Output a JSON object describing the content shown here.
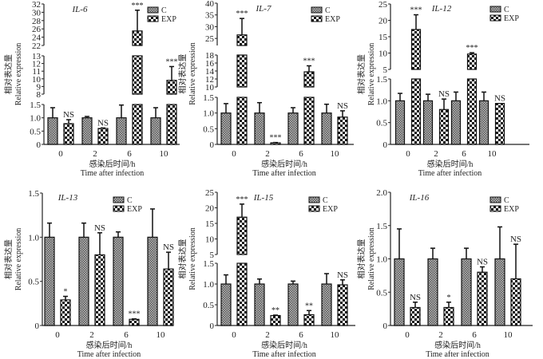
{
  "chart_data": [
    {
      "type": "bar",
      "title": "IL-6",
      "ylabel_cn": "相对表达量",
      "ylabel": "Relative expression",
      "xlabel_cn": "感染后时间/h",
      "xlabel": "Time after infection",
      "categories": [
        "0",
        "2",
        "6",
        "10"
      ],
      "broken_axis": true,
      "segments": [
        {
          "range": [
            0,
            1.5
          ],
          "ticks": [
            "0",
            "0.5",
            "1.0",
            "1.5"
          ]
        },
        {
          "range": [
            8,
            13
          ],
          "ticks": [
            "8",
            "9",
            "10",
            "11",
            "12",
            "13"
          ]
        },
        {
          "range": [
            22,
            32
          ],
          "ticks": [
            "22",
            "24",
            "26",
            "28",
            "30",
            "32"
          ]
        }
      ],
      "series": [
        {
          "name": "C",
          "values": [
            1,
            1,
            1,
            1
          ],
          "errors": [
            0.38,
            0.05,
            0.48,
            0.38
          ]
        },
        {
          "name": "EXP",
          "values": [
            0.78,
            0.6,
            25.5,
            9.8
          ],
          "errors": [
            0.15,
            0.02,
            5,
            1.8
          ],
          "annotations": [
            "NS",
            "NS",
            "***",
            "***"
          ]
        }
      ]
    },
    {
      "type": "bar",
      "title": "IL-7",
      "ylabel_cn": "相对表达量",
      "ylabel": "Relative expression",
      "xlabel_cn": "感染后时间/h",
      "xlabel": "Time after infection",
      "categories": [
        "0",
        "2",
        "6",
        "10"
      ],
      "broken_axis": true,
      "segments": [
        {
          "range": [
            0,
            1.5
          ],
          "ticks": [
            "0",
            "0.5",
            "1.0",
            "1.5"
          ]
        },
        {
          "range": [
            10,
            18
          ],
          "ticks": [
            "10",
            "12",
            "14",
            "16",
            "18"
          ]
        },
        {
          "range": [
            22,
            40
          ],
          "ticks": [
            "25",
            "30",
            "35",
            "40"
          ]
        }
      ],
      "series": [
        {
          "name": "C",
          "values": [
            1,
            1,
            1,
            1
          ],
          "errors": [
            0.3,
            0.33,
            0.17,
            0.28
          ]
        },
        {
          "name": "EXP",
          "values": [
            26.5,
            0.05,
            13.8,
            0.87
          ],
          "errors": [
            7,
            0.01,
            1.5,
            0.2
          ],
          "annotations": [
            "***",
            "***",
            "***",
            "NS"
          ]
        }
      ]
    },
    {
      "type": "bar",
      "title": "IL-12",
      "ylabel_cn": "相对表达量",
      "ylabel": "Relative expression",
      "xlabel_cn": "感染后时间/h",
      "xlabel": "Time after infection",
      "categories": [
        "0",
        "2",
        "6",
        "10"
      ],
      "broken_axis": true,
      "segments": [
        {
          "range": [
            0,
            1.5
          ],
          "ticks": [
            "0",
            "0.5",
            "1.0",
            "1.5"
          ]
        },
        {
          "range": [
            5,
            25
          ],
          "ticks": [
            "5",
            "10",
            "15",
            "20",
            "25"
          ]
        }
      ],
      "series": [
        {
          "name": "C",
          "values": [
            1,
            1,
            1,
            1
          ],
          "errors": [
            0.17,
            0.15,
            0.2,
            0.2
          ]
        },
        {
          "name": "EXP",
          "values": [
            17.2,
            0.8,
            9.7,
            0.94
          ],
          "errors": [
            4.5,
            0.24,
            0.4,
            0
          ],
          "annotations": [
            "***",
            "NS",
            "***",
            "NS"
          ]
        }
      ]
    },
    {
      "type": "bar",
      "title": "IL-13",
      "ylabel_cn": "相对表达量",
      "ylabel": "Relative expression",
      "xlabel_cn": "感染后时间/h",
      "xlabel": "Time after infection",
      "categories": [
        "0",
        "2",
        "6",
        "10"
      ],
      "broken_axis": false,
      "segments": [
        {
          "range": [
            0,
            1.5
          ],
          "ticks": [
            "0",
            "0.5",
            "1.0",
            "1.5"
          ]
        }
      ],
      "series": [
        {
          "name": "C",
          "values": [
            1,
            1,
            1,
            1
          ],
          "errors": [
            0.16,
            0.16,
            0.06,
            0.32
          ]
        },
        {
          "name": "EXP",
          "values": [
            0.29,
            0.8,
            0.07,
            0.64
          ],
          "errors": [
            0.04,
            0.25,
            0.005,
            0.19
          ],
          "annotations": [
            "*",
            "NS",
            "***",
            "NS"
          ]
        }
      ]
    },
    {
      "type": "bar",
      "title": "IL-15",
      "ylabel_cn": "相对表达量",
      "ylabel": "Relative expression",
      "xlabel_cn": "感染后时间/h",
      "xlabel": "Time after infection",
      "categories": [
        "0",
        "2",
        "6",
        "10"
      ],
      "broken_axis": true,
      "segments": [
        {
          "range": [
            0,
            1.5
          ],
          "ticks": [
            "0",
            "0.5",
            "1.0",
            "1.5"
          ]
        },
        {
          "range": [
            5,
            25
          ],
          "ticks": [
            "5",
            "10",
            "15",
            "20",
            "25"
          ]
        }
      ],
      "series": [
        {
          "name": "C",
          "values": [
            1,
            1,
            1,
            1
          ],
          "errors": [
            0.22,
            0.12,
            0.07,
            0.25
          ]
        },
        {
          "name": "EXP",
          "values": [
            17,
            0.24,
            0.26,
            0.98
          ],
          "errors": [
            4.2,
            0.01,
            0.1,
            0.12
          ],
          "annotations": [
            "***",
            "**",
            "**",
            "NS"
          ]
        }
      ]
    },
    {
      "type": "bar",
      "title": "IL-16",
      "ylabel_cn": "相对表达量",
      "ylabel": "Relative expression",
      "xlabel_cn": "感染后时间/h",
      "xlabel": "Time after infection",
      "categories": [
        "0",
        "2",
        "6",
        "10"
      ],
      "broken_axis": false,
      "segments": [
        {
          "range": [
            0,
            2.0
          ],
          "ticks": [
            "0",
            "0.5",
            "1.0",
            "1.5",
            "2.0"
          ]
        }
      ],
      "series": [
        {
          "name": "C",
          "values": [
            1,
            1,
            1,
            1
          ],
          "errors": [
            0.45,
            0.16,
            0.16,
            0.48
          ]
        },
        {
          "name": "EXP",
          "values": [
            0.27,
            0.27,
            0.8,
            0.7
          ],
          "errors": [
            0.08,
            0.08,
            0.08,
            0.52
          ],
          "annotations": [
            "NS",
            "*",
            "NS",
            "NS"
          ]
        }
      ]
    }
  ],
  "legend": {
    "placement": "top-right",
    "C": "C",
    "EXP": "EXP"
  },
  "colors": {
    "C_fill": "#8a8a8a",
    "EXP_fill": "#1a1a1a",
    "axis": "#222222"
  }
}
